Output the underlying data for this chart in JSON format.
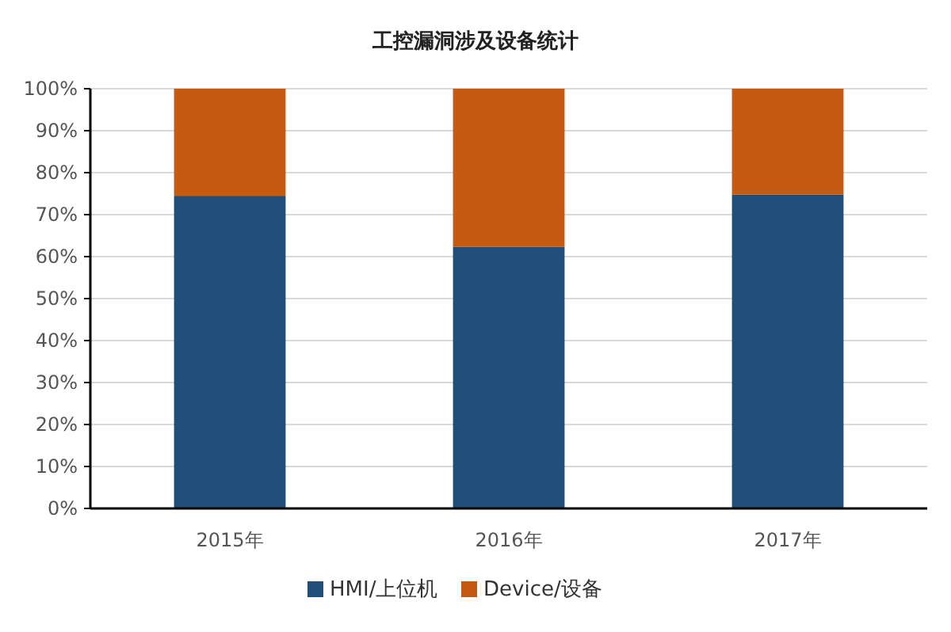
{
  "chart_data": {
    "type": "bar",
    "title": "工控漏洞涉及设备统计",
    "stacked": true,
    "categories": [
      "2015年",
      "2016年",
      "2017年"
    ],
    "series": [
      {
        "name": "HMI/上位机",
        "color": "#1f4e79",
        "values": [
          74.5,
          62.3,
          74.8
        ]
      },
      {
        "name": "Device/设备",
        "color": "#c55a11",
        "values": [
          25.5,
          37.7,
          25.2
        ]
      }
    ],
    "ylim": [
      0,
      100
    ],
    "yticks": [
      {
        "value": 0,
        "label": "0%"
      },
      {
        "value": 10,
        "label": "10%"
      },
      {
        "value": 20,
        "label": "20%"
      },
      {
        "value": 30,
        "label": "30%"
      },
      {
        "value": 40,
        "label": "40%"
      },
      {
        "value": 50,
        "label": "50%"
      },
      {
        "value": 60,
        "label": "60%"
      },
      {
        "value": 70,
        "label": "70%"
      },
      {
        "value": 80,
        "label": "80%"
      },
      {
        "value": 90,
        "label": "90%"
      },
      {
        "value": 100,
        "label": "100%"
      }
    ],
    "grid": "y",
    "legend": "bottom"
  }
}
